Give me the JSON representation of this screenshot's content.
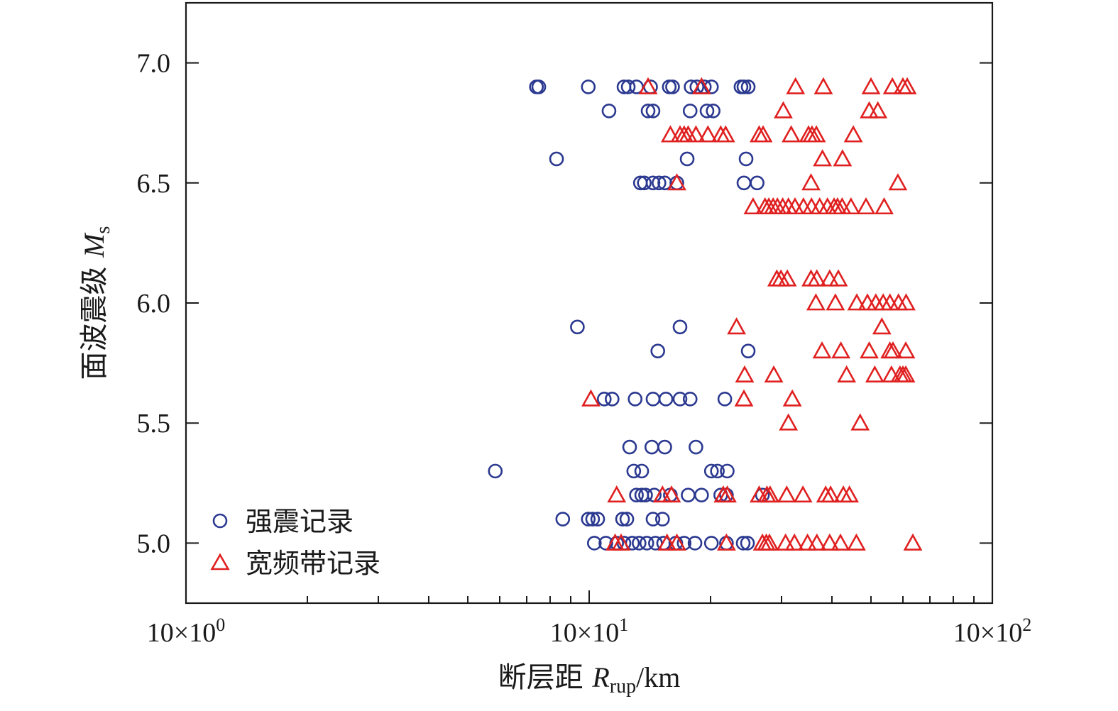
{
  "chart_data": {
    "type": "scatter",
    "title": "",
    "xlabel": {
      "main": "断层距 ",
      "var": "R",
      "sub": "rup",
      "unit": "/km"
    },
    "ylabel": {
      "main": "面波震级 ",
      "var": "M",
      "sub": "s"
    },
    "xscale": "log",
    "xlim": [
      1,
      100
    ],
    "ylim": [
      4.75,
      7.25
    ],
    "xticks": [
      {
        "value": 1,
        "base": "10×10",
        "exp": "0"
      },
      {
        "value": 10,
        "base": "10×10",
        "exp": "1"
      },
      {
        "value": 100,
        "base": "10×10",
        "exp": "2"
      }
    ],
    "yticks": [
      {
        "value": 5.0,
        "label": "5.0"
      },
      {
        "value": 5.5,
        "label": "5.5"
      },
      {
        "value": 6.0,
        "label": "6.0"
      },
      {
        "value": 6.5,
        "label": "6.5"
      },
      {
        "value": 7.0,
        "label": "7.0"
      }
    ],
    "grid": false,
    "legend_position": "bottom-left",
    "series": [
      {
        "name": "强震记录",
        "marker": "circle",
        "color": "#2b3990",
        "points": [
          [
            7.4,
            6.9
          ],
          [
            7.5,
            6.9
          ],
          [
            9.95,
            6.9
          ],
          [
            12.2,
            6.9
          ],
          [
            12.5,
            6.9
          ],
          [
            13.1,
            6.9
          ],
          [
            14.2,
            6.9
          ],
          [
            15.8,
            6.9
          ],
          [
            16.1,
            6.9
          ],
          [
            17.9,
            6.9
          ],
          [
            18.5,
            6.9
          ],
          [
            19.3,
            6.9
          ],
          [
            20.1,
            6.9
          ],
          [
            23.8,
            6.9
          ],
          [
            24.2,
            6.9
          ],
          [
            24.8,
            6.9
          ],
          [
            11.2,
            6.8
          ],
          [
            14.0,
            6.8
          ],
          [
            14.4,
            6.8
          ],
          [
            17.8,
            6.8
          ],
          [
            19.6,
            6.8
          ],
          [
            20.3,
            6.8
          ],
          [
            8.3,
            6.6
          ],
          [
            17.5,
            6.6
          ],
          [
            24.5,
            6.6
          ],
          [
            13.4,
            6.5
          ],
          [
            13.7,
            6.5
          ],
          [
            14.4,
            6.5
          ],
          [
            14.9,
            6.5
          ],
          [
            15.4,
            6.5
          ],
          [
            16.5,
            6.5
          ],
          [
            24.2,
            6.5
          ],
          [
            26.1,
            6.5
          ],
          [
            9.35,
            5.9
          ],
          [
            16.8,
            5.9
          ],
          [
            14.8,
            5.8
          ],
          [
            24.8,
            5.8
          ],
          [
            10.9,
            5.6
          ],
          [
            11.4,
            5.6
          ],
          [
            13.0,
            5.6
          ],
          [
            14.4,
            5.6
          ],
          [
            15.5,
            5.6
          ],
          [
            16.8,
            5.6
          ],
          [
            17.8,
            5.6
          ],
          [
            21.7,
            5.6
          ],
          [
            12.6,
            5.4
          ],
          [
            14.3,
            5.4
          ],
          [
            15.4,
            5.4
          ],
          [
            18.4,
            5.4
          ],
          [
            5.85,
            5.3
          ],
          [
            12.9,
            5.3
          ],
          [
            13.5,
            5.3
          ],
          [
            20.1,
            5.3
          ],
          [
            20.8,
            5.3
          ],
          [
            22.0,
            5.3
          ],
          [
            13.1,
            5.2
          ],
          [
            13.5,
            5.2
          ],
          [
            13.8,
            5.2
          ],
          [
            14.5,
            5.2
          ],
          [
            15.9,
            5.2
          ],
          [
            17.6,
            5.2
          ],
          [
            19.0,
            5.2
          ],
          [
            21.2,
            5.2
          ],
          [
            21.9,
            5.2
          ],
          [
            26.9,
            5.2
          ],
          [
            8.6,
            5.1
          ],
          [
            9.95,
            5.1
          ],
          [
            10.2,
            5.1
          ],
          [
            10.5,
            5.1
          ],
          [
            12.1,
            5.1
          ],
          [
            12.4,
            5.1
          ],
          [
            14.4,
            5.1
          ],
          [
            15.2,
            5.1
          ],
          [
            10.3,
            5.0
          ],
          [
            11.0,
            5.0
          ],
          [
            11.7,
            5.0
          ],
          [
            12.2,
            5.0
          ],
          [
            12.8,
            5.0
          ],
          [
            13.3,
            5.0
          ],
          [
            13.9,
            5.0
          ],
          [
            14.6,
            5.0
          ],
          [
            15.3,
            5.0
          ],
          [
            16.4,
            5.0
          ],
          [
            17.2,
            5.0
          ],
          [
            18.3,
            5.0
          ],
          [
            20.1,
            5.0
          ],
          [
            21.9,
            5.0
          ],
          [
            24.1,
            5.0
          ],
          [
            24.7,
            5.0
          ]
        ]
      },
      {
        "name": "宽频带记录",
        "marker": "triangle",
        "color": "#e02020",
        "points": [
          [
            14.0,
            6.9
          ],
          [
            19.0,
            6.9
          ],
          [
            32.5,
            6.9
          ],
          [
            38.1,
            6.9
          ],
          [
            50.0,
            6.9
          ],
          [
            56.5,
            6.9
          ],
          [
            60.0,
            6.9
          ],
          [
            61.5,
            6.9
          ],
          [
            30.3,
            6.8
          ],
          [
            49.5,
            6.8
          ],
          [
            52.0,
            6.8
          ],
          [
            15.9,
            6.7
          ],
          [
            16.8,
            6.7
          ],
          [
            17.2,
            6.7
          ],
          [
            17.6,
            6.7
          ],
          [
            18.4,
            6.7
          ],
          [
            19.7,
            6.7
          ],
          [
            21.2,
            6.7
          ],
          [
            21.8,
            6.7
          ],
          [
            26.4,
            6.7
          ],
          [
            27.0,
            6.7
          ],
          [
            31.7,
            6.7
          ],
          [
            35.0,
            6.7
          ],
          [
            35.7,
            6.7
          ],
          [
            36.6,
            6.7
          ],
          [
            45.2,
            6.7
          ],
          [
            37.9,
            6.6
          ],
          [
            42.5,
            6.6
          ],
          [
            16.5,
            6.5
          ],
          [
            35.5,
            6.5
          ],
          [
            58.3,
            6.5
          ],
          [
            25.5,
            6.4
          ],
          [
            27.3,
            6.4
          ],
          [
            27.9,
            6.4
          ],
          [
            28.6,
            6.4
          ],
          [
            29.3,
            6.4
          ],
          [
            30.2,
            6.4
          ],
          [
            31.2,
            6.4
          ],
          [
            32.4,
            6.4
          ],
          [
            34.0,
            6.4
          ],
          [
            35.6,
            6.4
          ],
          [
            37.3,
            6.4
          ],
          [
            39.0,
            6.4
          ],
          [
            40.5,
            6.4
          ],
          [
            41.3,
            6.4
          ],
          [
            42.4,
            6.4
          ],
          [
            44.6,
            6.4
          ],
          [
            48.6,
            6.4
          ],
          [
            53.9,
            6.4
          ],
          [
            29.2,
            6.1
          ],
          [
            29.9,
            6.1
          ],
          [
            31.0,
            6.1
          ],
          [
            35.5,
            6.1
          ],
          [
            36.7,
            6.1
          ],
          [
            39.5,
            6.1
          ],
          [
            41.5,
            6.1
          ],
          [
            36.5,
            6.0
          ],
          [
            40.8,
            6.0
          ],
          [
            46.1,
            6.0
          ],
          [
            49.0,
            6.0
          ],
          [
            51.4,
            6.0
          ],
          [
            53.6,
            6.0
          ],
          [
            55.7,
            6.0
          ],
          [
            58.5,
            6.0
          ],
          [
            61.1,
            6.0
          ],
          [
            23.2,
            5.9
          ],
          [
            53.2,
            5.9
          ],
          [
            37.8,
            5.8
          ],
          [
            42.1,
            5.8
          ],
          [
            49.5,
            5.8
          ],
          [
            55.7,
            5.8
          ],
          [
            56.7,
            5.8
          ],
          [
            61.0,
            5.8
          ],
          [
            24.3,
            5.7
          ],
          [
            28.7,
            5.7
          ],
          [
            43.5,
            5.7
          ],
          [
            51.1,
            5.7
          ],
          [
            56.2,
            5.7
          ],
          [
            59.0,
            5.7
          ],
          [
            60.0,
            5.7
          ],
          [
            61.0,
            5.7
          ],
          [
            10.1,
            5.6
          ],
          [
            24.2,
            5.6
          ],
          [
            31.9,
            5.6
          ],
          [
            31.2,
            5.5
          ],
          [
            47.0,
            5.5
          ],
          [
            11.7,
            5.2
          ],
          [
            15.2,
            5.2
          ],
          [
            16.0,
            5.2
          ],
          [
            21.5,
            5.2
          ],
          [
            22.0,
            5.2
          ],
          [
            26.4,
            5.2
          ],
          [
            27.6,
            5.2
          ],
          [
            28.1,
            5.2
          ],
          [
            30.9,
            5.2
          ],
          [
            33.9,
            5.2
          ],
          [
            38.6,
            5.2
          ],
          [
            39.7,
            5.2
          ],
          [
            42.7,
            5.2
          ],
          [
            44.2,
            5.2
          ],
          [
            11.6,
            5.0
          ],
          [
            12.0,
            5.0
          ],
          [
            15.6,
            5.0
          ],
          [
            16.5,
            5.0
          ],
          [
            21.9,
            5.0
          ],
          [
            26.9,
            5.0
          ],
          [
            27.5,
            5.0
          ],
          [
            28.0,
            5.0
          ],
          [
            30.7,
            5.0
          ],
          [
            32.3,
            5.0
          ],
          [
            34.8,
            5.0
          ],
          [
            36.7,
            5.0
          ],
          [
            39.5,
            5.0
          ],
          [
            42.0,
            5.0
          ],
          [
            46.0,
            5.0
          ],
          [
            63.5,
            5.0
          ]
        ]
      }
    ]
  }
}
